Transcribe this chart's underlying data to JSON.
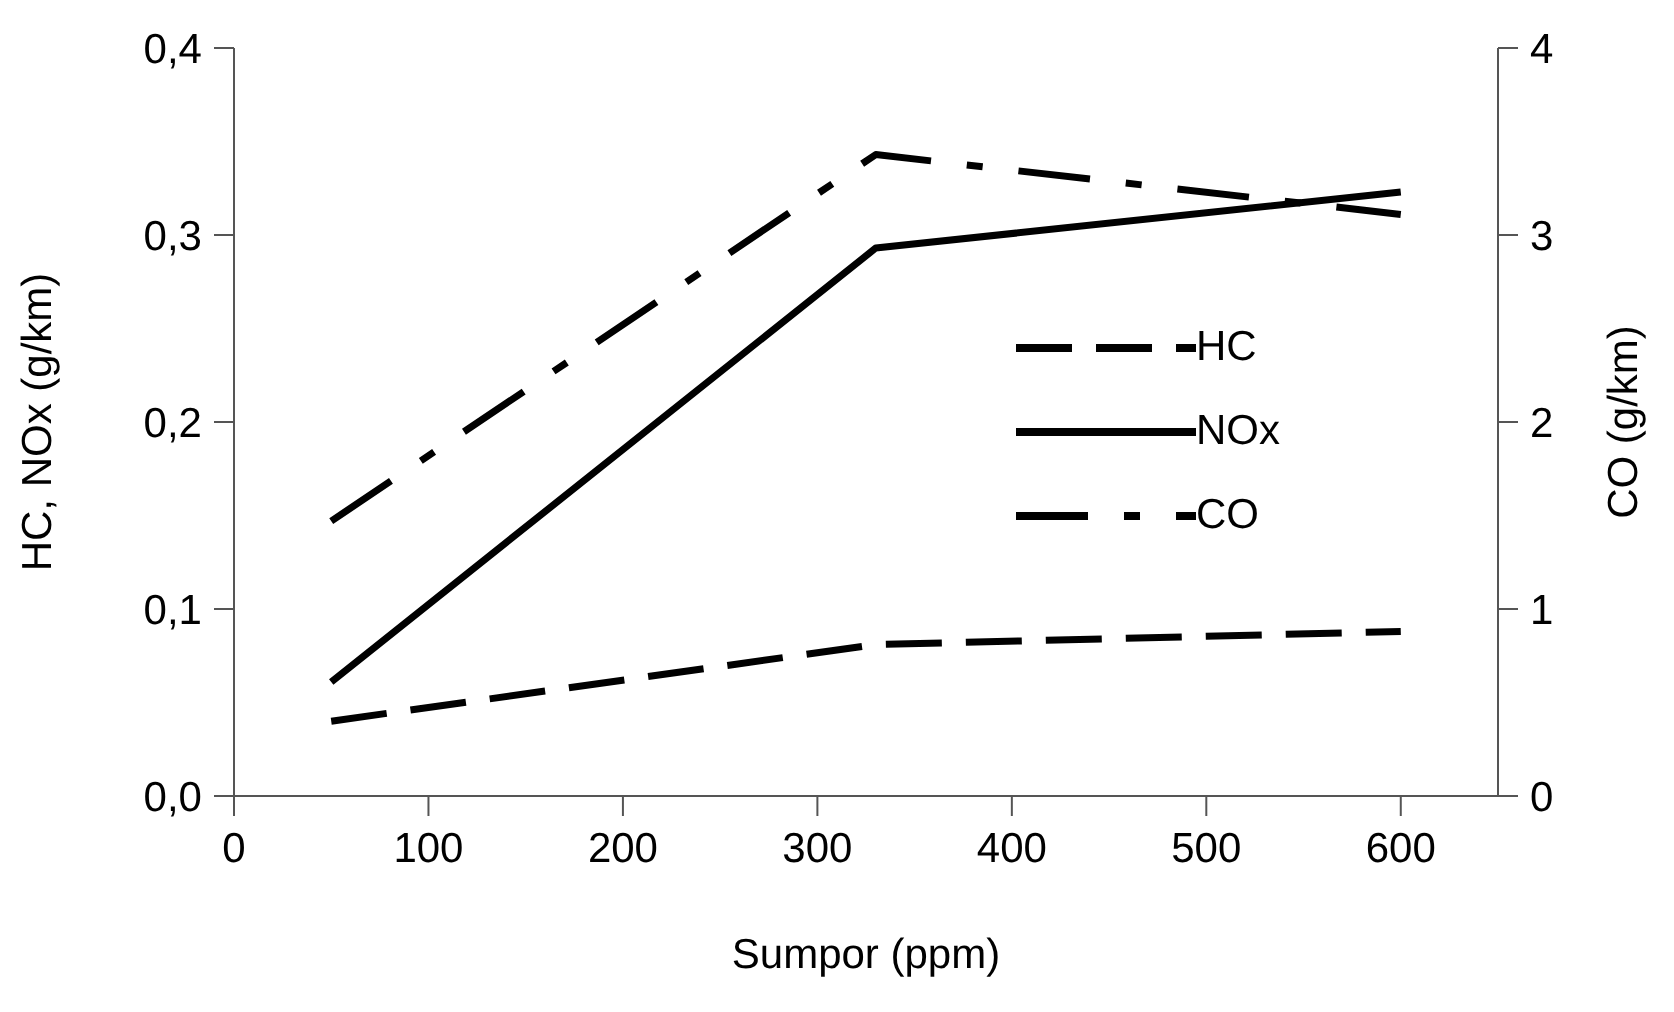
{
  "chart_data": {
    "type": "line",
    "xlabel": "Sumpor (ppm)",
    "ylabel": "HC, NOx (g/km)",
    "y2label": "CO (g/km)",
    "x": [
      50,
      330,
      600
    ],
    "series": [
      {
        "name": "HC",
        "color": "#000000",
        "values": [
          0.04,
          0.081,
          0.088
        ],
        "line_style": "dashed"
      },
      {
        "name": "NOx",
        "color": "#000000",
        "values": [
          0.061,
          0.293,
          0.323
        ],
        "line_style": "solid"
      },
      {
        "name": "CO",
        "color": "#000000",
        "values": [
          1.47,
          3.43,
          3.11
        ],
        "line_style": "dashdot",
        "axis": "y2"
      }
    ],
    "xlim": [
      0,
      650
    ],
    "xticks": [
      0,
      100,
      200,
      300,
      400,
      500,
      600
    ],
    "ylim": [
      0,
      0.4
    ],
    "yticks": [
      {
        "value": 0,
        "label": "0,0"
      },
      {
        "value": 0.1,
        "label": "0,1"
      },
      {
        "value": 0.2,
        "label": "0,2"
      },
      {
        "value": 0.3,
        "label": "0,3"
      },
      {
        "value": 0.4,
        "label": "0,4"
      }
    ],
    "y2lim": [
      0,
      4
    ],
    "y2ticks": [
      0,
      1,
      2,
      3,
      4
    ],
    "grid": false,
    "legend": "right",
    "marker": "none"
  }
}
